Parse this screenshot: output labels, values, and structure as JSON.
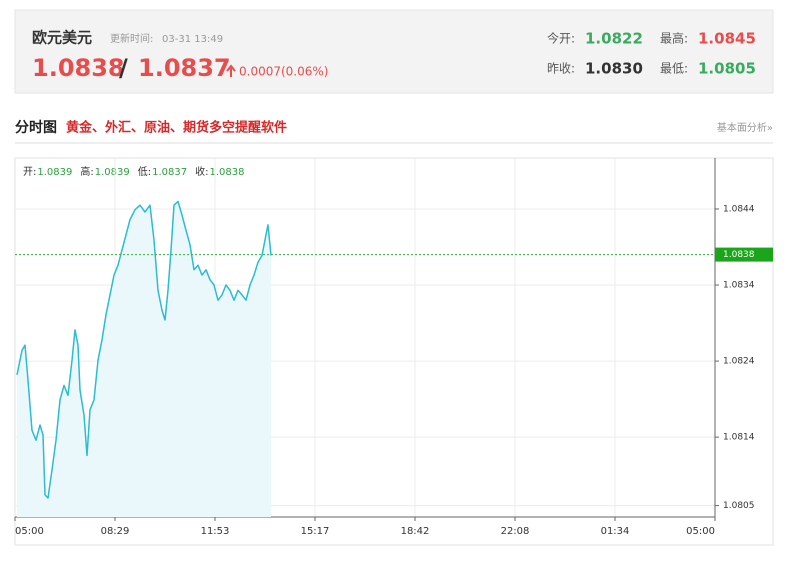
{
  "header": {
    "name": "欧元美元",
    "update_label": "更新时间:",
    "update_time": "03-31 13:49",
    "bid": "1.0838",
    "separator": "/",
    "ask": "1.0837",
    "change": "0.0007(0.06%)",
    "stats": [
      {
        "label": "今开:",
        "value": "1.0822"
      },
      {
        "label": "最高:",
        "value": "1.0845"
      },
      {
        "label": "昨收:",
        "value": "1.0830"
      },
      {
        "label": "最低:",
        "value": "1.0805"
      }
    ]
  },
  "section": {
    "title": "分时图",
    "promo": "黄金、外汇、原油、期货多空提醒软件",
    "link": "基本面分析»"
  },
  "chart_data": {
    "type": "line",
    "color": "#2bbcd0",
    "fill": "#eaf8fb",
    "grid": true,
    "info": [
      {
        "label": "开:",
        "value": "1.0839"
      },
      {
        "label": "高:",
        "value": "1.0839"
      },
      {
        "label": "低:",
        "value": "1.0837"
      },
      {
        "label": "收:",
        "value": "1.0838"
      }
    ],
    "current": 1.0838,
    "xlim": [
      0,
      7
    ],
    "xticks": [
      {
        "value": 0,
        "label": "05:00"
      },
      {
        "value": 1,
        "label": "08:29"
      },
      {
        "value": 2,
        "label": "11:53"
      },
      {
        "value": 3,
        "label": "15:17"
      },
      {
        "value": 4,
        "label": "18:42"
      },
      {
        "value": 5,
        "label": "22:08"
      },
      {
        "value": 6,
        "label": "01:34"
      },
      {
        "value": 7,
        "label": "05:00"
      }
    ],
    "ylim": [
      1.08035,
      1.08507
    ],
    "yticks": [
      1.0844,
      1.0834,
      1.0824,
      1.0814,
      1.0805
    ],
    "x": [
      0.02,
      0.07,
      0.1,
      0.13,
      0.17,
      0.21,
      0.25,
      0.28,
      0.3,
      0.33,
      0.37,
      0.41,
      0.45,
      0.49,
      0.53,
      0.57,
      0.6,
      0.63,
      0.65,
      0.69,
      0.72,
      0.75,
      0.79,
      0.83,
      0.87,
      0.91,
      0.95,
      0.99,
      1.03,
      1.07,
      1.11,
      1.15,
      1.2,
      1.25,
      1.3,
      1.35,
      1.39,
      1.43,
      1.47,
      1.5,
      1.53,
      1.56,
      1.59,
      1.63,
      1.67,
      1.71,
      1.75,
      1.79,
      1.83,
      1.87,
      1.91,
      1.95,
      1.99,
      2.03,
      2.07,
      2.11,
      2.15,
      2.19,
      2.23,
      2.27,
      2.31,
      2.35,
      2.39,
      2.43,
      2.47,
      2.51,
      2.53,
      2.56
    ],
    "values": [
      1.08222,
      1.08254,
      1.08261,
      1.08215,
      1.08149,
      1.08136,
      1.08156,
      1.08143,
      1.08064,
      1.0806,
      1.08097,
      1.08136,
      1.08189,
      1.08208,
      1.08195,
      1.08241,
      1.08281,
      1.08261,
      1.08202,
      1.08169,
      1.08116,
      1.08176,
      1.08189,
      1.08241,
      1.08268,
      1.08301,
      1.08327,
      1.08353,
      1.08366,
      1.08386,
      1.08406,
      1.08426,
      1.08439,
      1.08445,
      1.08436,
      1.08445,
      1.08399,
      1.08333,
      1.08307,
      1.08294,
      1.08333,
      1.08386,
      1.08445,
      1.0845,
      1.08432,
      1.08412,
      1.08393,
      1.0836,
      1.08366,
      1.08353,
      1.0836,
      1.08347,
      1.0834,
      1.0832,
      1.08327,
      1.0834,
      1.08333,
      1.0832,
      1.08333,
      1.08327,
      1.0832,
      1.0834,
      1.08353,
      1.0837,
      1.08379,
      1.08406,
      1.08419,
      1.08379
    ]
  }
}
